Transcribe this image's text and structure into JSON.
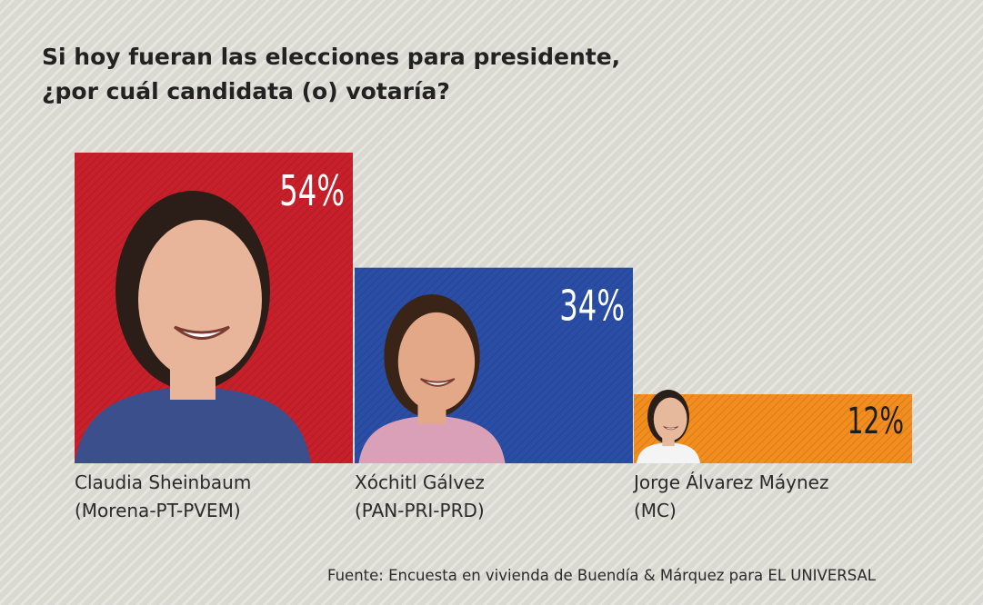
{
  "title": {
    "line1": "Si hoy fueran las elecciones para presidente,",
    "line2": "¿por cuál candidata (o) votaría?"
  },
  "chart_data": {
    "type": "bar",
    "title": "Si hoy fueran las elecciones para presidente, ¿por cuál candidata (o) votaría?",
    "categories": [
      "Claudia Sheinbaum (Morena-PT-PVEM)",
      "Xóchitl Gálvez (PAN-PRI-PRD)",
      "Jorge Álvarez Máynez (MC)"
    ],
    "values": [
      54,
      34,
      12
    ],
    "value_labels": [
      "54%",
      "34%",
      "12%"
    ],
    "colors": [
      "#c8202b",
      "#2a4ea6",
      "#f28d1e"
    ],
    "ylim": [
      0,
      54
    ],
    "grid": false
  },
  "candidates": [
    {
      "name": "Claudia Sheinbaum",
      "party": "(Morena-PT-PVEM)"
    },
    {
      "name": "Xóchitl Gálvez",
      "party": "(PAN-PRI-PRD)"
    },
    {
      "name": "Jorge Álvarez Máynez",
      "party": "(MC)"
    }
  ],
  "source": "Fuente: Encuesta en vivienda de Buendía & Márquez para EL UNIVERSAL"
}
